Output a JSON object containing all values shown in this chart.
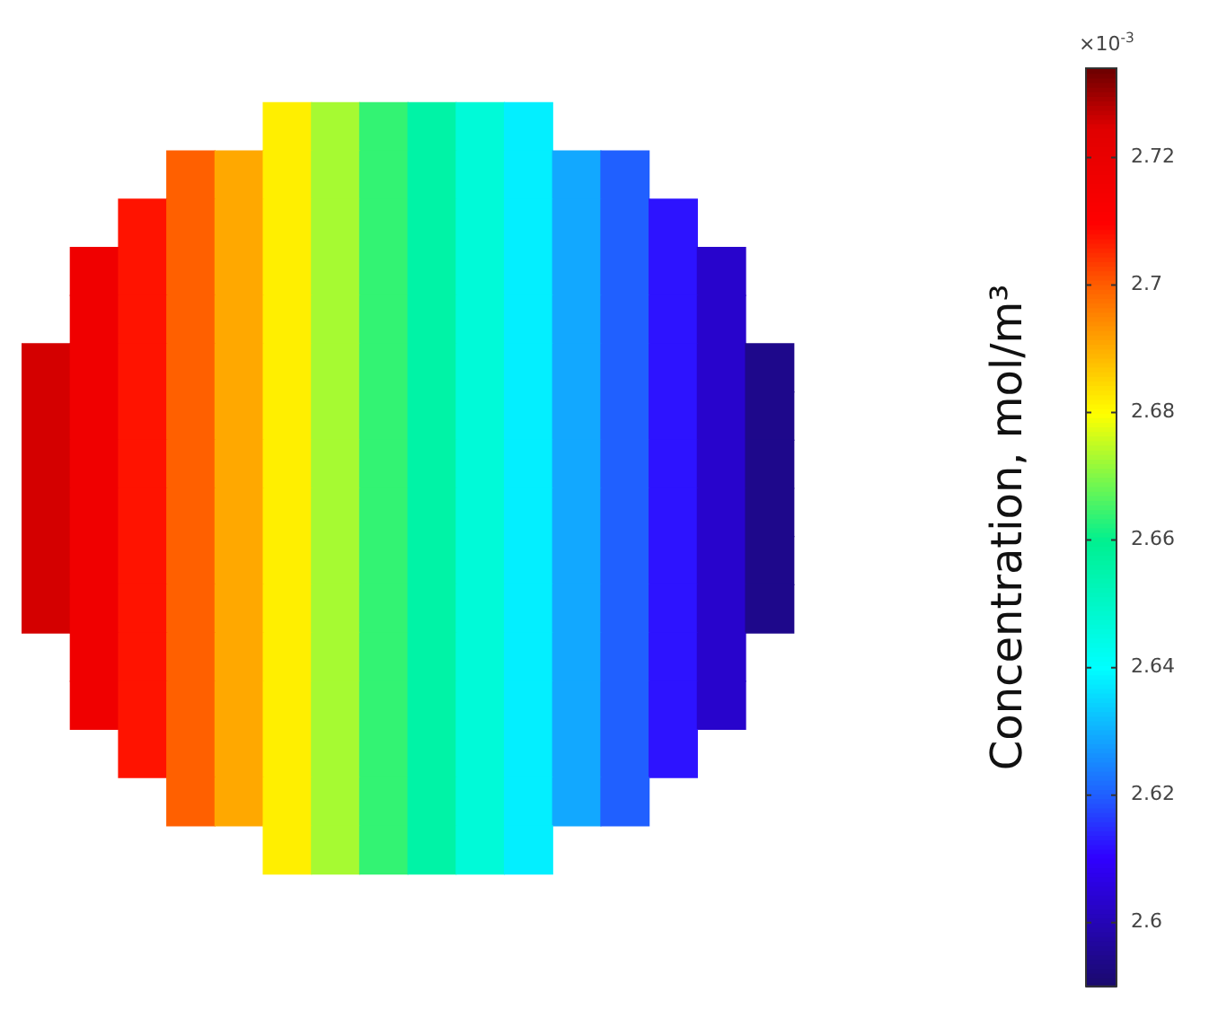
{
  "chart_data": {
    "type": "heatmap",
    "categories": [
      null,
      null,
      null,
      null,
      null,
      null,
      null,
      null,
      null,
      null,
      null,
      null,
      null,
      null,
      null,
      null
    ],
    "y_categories": [
      null,
      null,
      null,
      null,
      null,
      null,
      null,
      null,
      null,
      null,
      null,
      null,
      null,
      null,
      null,
      null
    ],
    "cells": [
      [
        null,
        null,
        null,
        null,
        null,
        2.682,
        2.673,
        2.664,
        2.656,
        2.647,
        2.638,
        null,
        null,
        null,
        null,
        null
      ],
      [
        null,
        null,
        null,
        2.7,
        2.691,
        2.682,
        2.673,
        2.664,
        2.656,
        2.647,
        2.638,
        2.629,
        2.62,
        null,
        null,
        null
      ],
      [
        null,
        null,
        2.708,
        2.7,
        2.691,
        2.682,
        2.673,
        2.664,
        2.656,
        2.647,
        2.638,
        2.629,
        2.62,
        2.612,
        null,
        null
      ],
      [
        null,
        2.717,
        2.708,
        2.7,
        2.691,
        2.682,
        2.673,
        2.664,
        2.656,
        2.647,
        2.638,
        2.629,
        2.62,
        2.612,
        2.603,
        null
      ],
      [
        null,
        2.717,
        2.708,
        2.7,
        2.691,
        2.682,
        2.673,
        2.664,
        2.656,
        2.647,
        2.638,
        2.629,
        2.62,
        2.612,
        2.603,
        null
      ],
      [
        2.726,
        2.717,
        2.708,
        2.7,
        2.691,
        2.682,
        2.673,
        2.664,
        2.656,
        2.647,
        2.638,
        2.629,
        2.62,
        2.612,
        2.603,
        2.594
      ],
      [
        2.726,
        2.717,
        2.708,
        2.7,
        2.691,
        2.682,
        2.673,
        2.664,
        2.656,
        2.647,
        2.638,
        2.629,
        2.62,
        2.612,
        2.603,
        2.594
      ],
      [
        2.726,
        2.717,
        2.708,
        2.7,
        2.691,
        2.682,
        2.673,
        2.664,
        2.656,
        2.647,
        2.638,
        2.629,
        2.62,
        2.612,
        2.603,
        2.594
      ],
      [
        2.726,
        2.717,
        2.708,
        2.7,
        2.691,
        2.682,
        2.673,
        2.664,
        2.656,
        2.647,
        2.638,
        2.629,
        2.62,
        2.612,
        2.603,
        2.594
      ],
      [
        2.726,
        2.717,
        2.708,
        2.7,
        2.691,
        2.682,
        2.673,
        2.664,
        2.656,
        2.647,
        2.638,
        2.629,
        2.62,
        2.612,
        2.603,
        2.594
      ],
      [
        2.726,
        2.717,
        2.708,
        2.7,
        2.691,
        2.682,
        2.673,
        2.664,
        2.656,
        2.647,
        2.638,
        2.629,
        2.62,
        2.612,
        2.603,
        2.594
      ],
      [
        null,
        2.717,
        2.708,
        2.7,
        2.691,
        2.682,
        2.673,
        2.664,
        2.656,
        2.647,
        2.638,
        2.629,
        2.62,
        2.612,
        2.603,
        null
      ],
      [
        null,
        2.717,
        2.708,
        2.7,
        2.691,
        2.682,
        2.673,
        2.664,
        2.656,
        2.647,
        2.638,
        2.629,
        2.62,
        2.612,
        2.603,
        null
      ],
      [
        null,
        null,
        2.708,
        2.7,
        2.691,
        2.682,
        2.673,
        2.664,
        2.656,
        2.647,
        2.638,
        2.629,
        2.62,
        2.612,
        null,
        null
      ],
      [
        null,
        null,
        null,
        2.7,
        2.691,
        2.682,
        2.673,
        2.664,
        2.656,
        2.647,
        2.638,
        2.629,
        2.62,
        null,
        null,
        null
      ],
      [
        null,
        null,
        null,
        null,
        null,
        2.682,
        2.673,
        2.664,
        2.656,
        2.647,
        2.638,
        null,
        null,
        null,
        null,
        null
      ]
    ],
    "clim": [
      2.59,
      2.734
    ],
    "cticks": [
      2.6,
      2.62,
      2.64,
      2.66,
      2.68,
      2.7,
      2.72
    ],
    "clabel": "Concentration, mol/m³",
    "annotations": [
      "×10$^{-3}$"
    ],
    "tick_labels": false
  }
}
